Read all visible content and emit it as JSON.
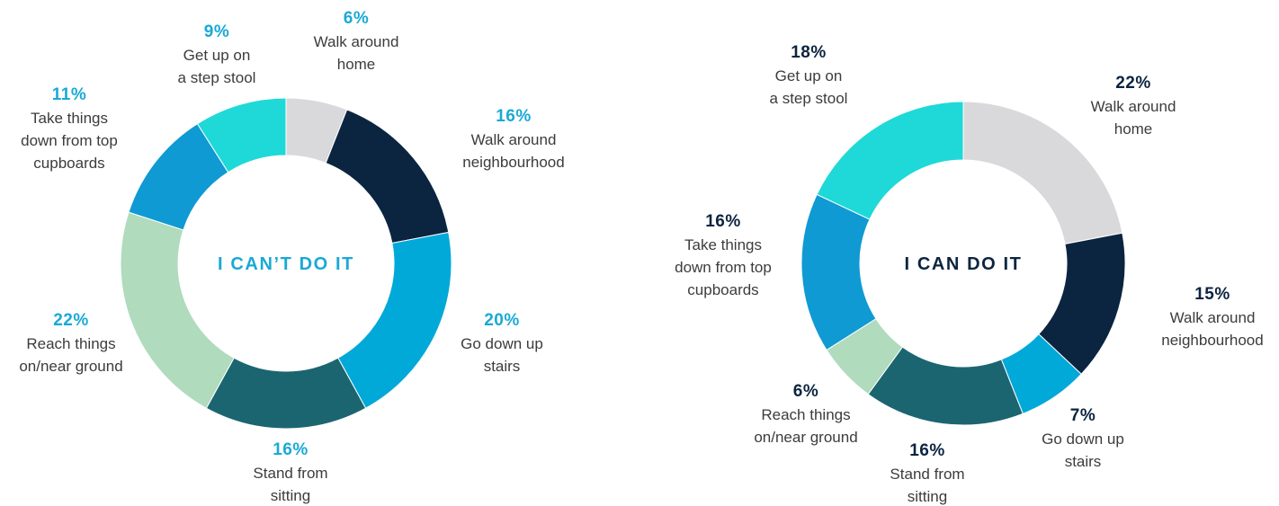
{
  "chart_data": [
    {
      "type": "pie",
      "title": "I CAN’T DO IT",
      "accent_color": "#1aa9d6",
      "categories": [
        "Walk around home",
        "Walk around neighbourhood",
        "Go down up stairs",
        "Stand from sitting",
        "Reach things on/near ground",
        "Take things down from top cupboards",
        "Get up on a step stool"
      ],
      "values": [
        6,
        16,
        20,
        16,
        22,
        11,
        9
      ],
      "value_labels": [
        "6%",
        "16%",
        "20%",
        "16%",
        "22%",
        "11%",
        "9%"
      ],
      "label_lines": [
        [
          "Walk around",
          "home"
        ],
        [
          "Walk around",
          "neighbourhood"
        ],
        [
          "Go down up",
          "stairs"
        ],
        [
          "Stand from",
          "sitting"
        ],
        [
          "Reach things",
          "on/near ground"
        ],
        [
          "Take things",
          "down from top",
          "cupboards"
        ],
        [
          "Get up on",
          "a step stool"
        ]
      ],
      "colors": [
        "#d9d9db",
        "#0b2440",
        "#00a9d8",
        "#1b6570",
        "#b0dbbd",
        "#0f9ad3",
        "#1ed9d8"
      ]
    },
    {
      "type": "pie",
      "title": "I CAN DO IT",
      "accent_color": "#0b2440",
      "categories": [
        "Walk around home",
        "Walk around neighbourhood",
        "Go down up stairs",
        "Stand from sitting",
        "Reach things on/near ground",
        "Take things down from top cupboards",
        "Get up on a step stool"
      ],
      "values": [
        22,
        15,
        7,
        16,
        6,
        16,
        18
      ],
      "value_labels": [
        "22%",
        "15%",
        "7%",
        "16%",
        "6%",
        "16%",
        "18%"
      ],
      "label_lines": [
        [
          "Walk around",
          "home"
        ],
        [
          "Walk around",
          "neighbourhood"
        ],
        [
          "Go down up",
          "stairs"
        ],
        [
          "Stand from",
          "sitting"
        ],
        [
          "Reach things",
          "on/near ground"
        ],
        [
          "Take things",
          "down from top",
          "cupboards"
        ],
        [
          "Get up on",
          "a step stool"
        ]
      ],
      "colors": [
        "#d9d9db",
        "#0b2440",
        "#00a9d8",
        "#1b6570",
        "#b0dbbd",
        "#0f9ad3",
        "#1ed9d8"
      ]
    }
  ]
}
